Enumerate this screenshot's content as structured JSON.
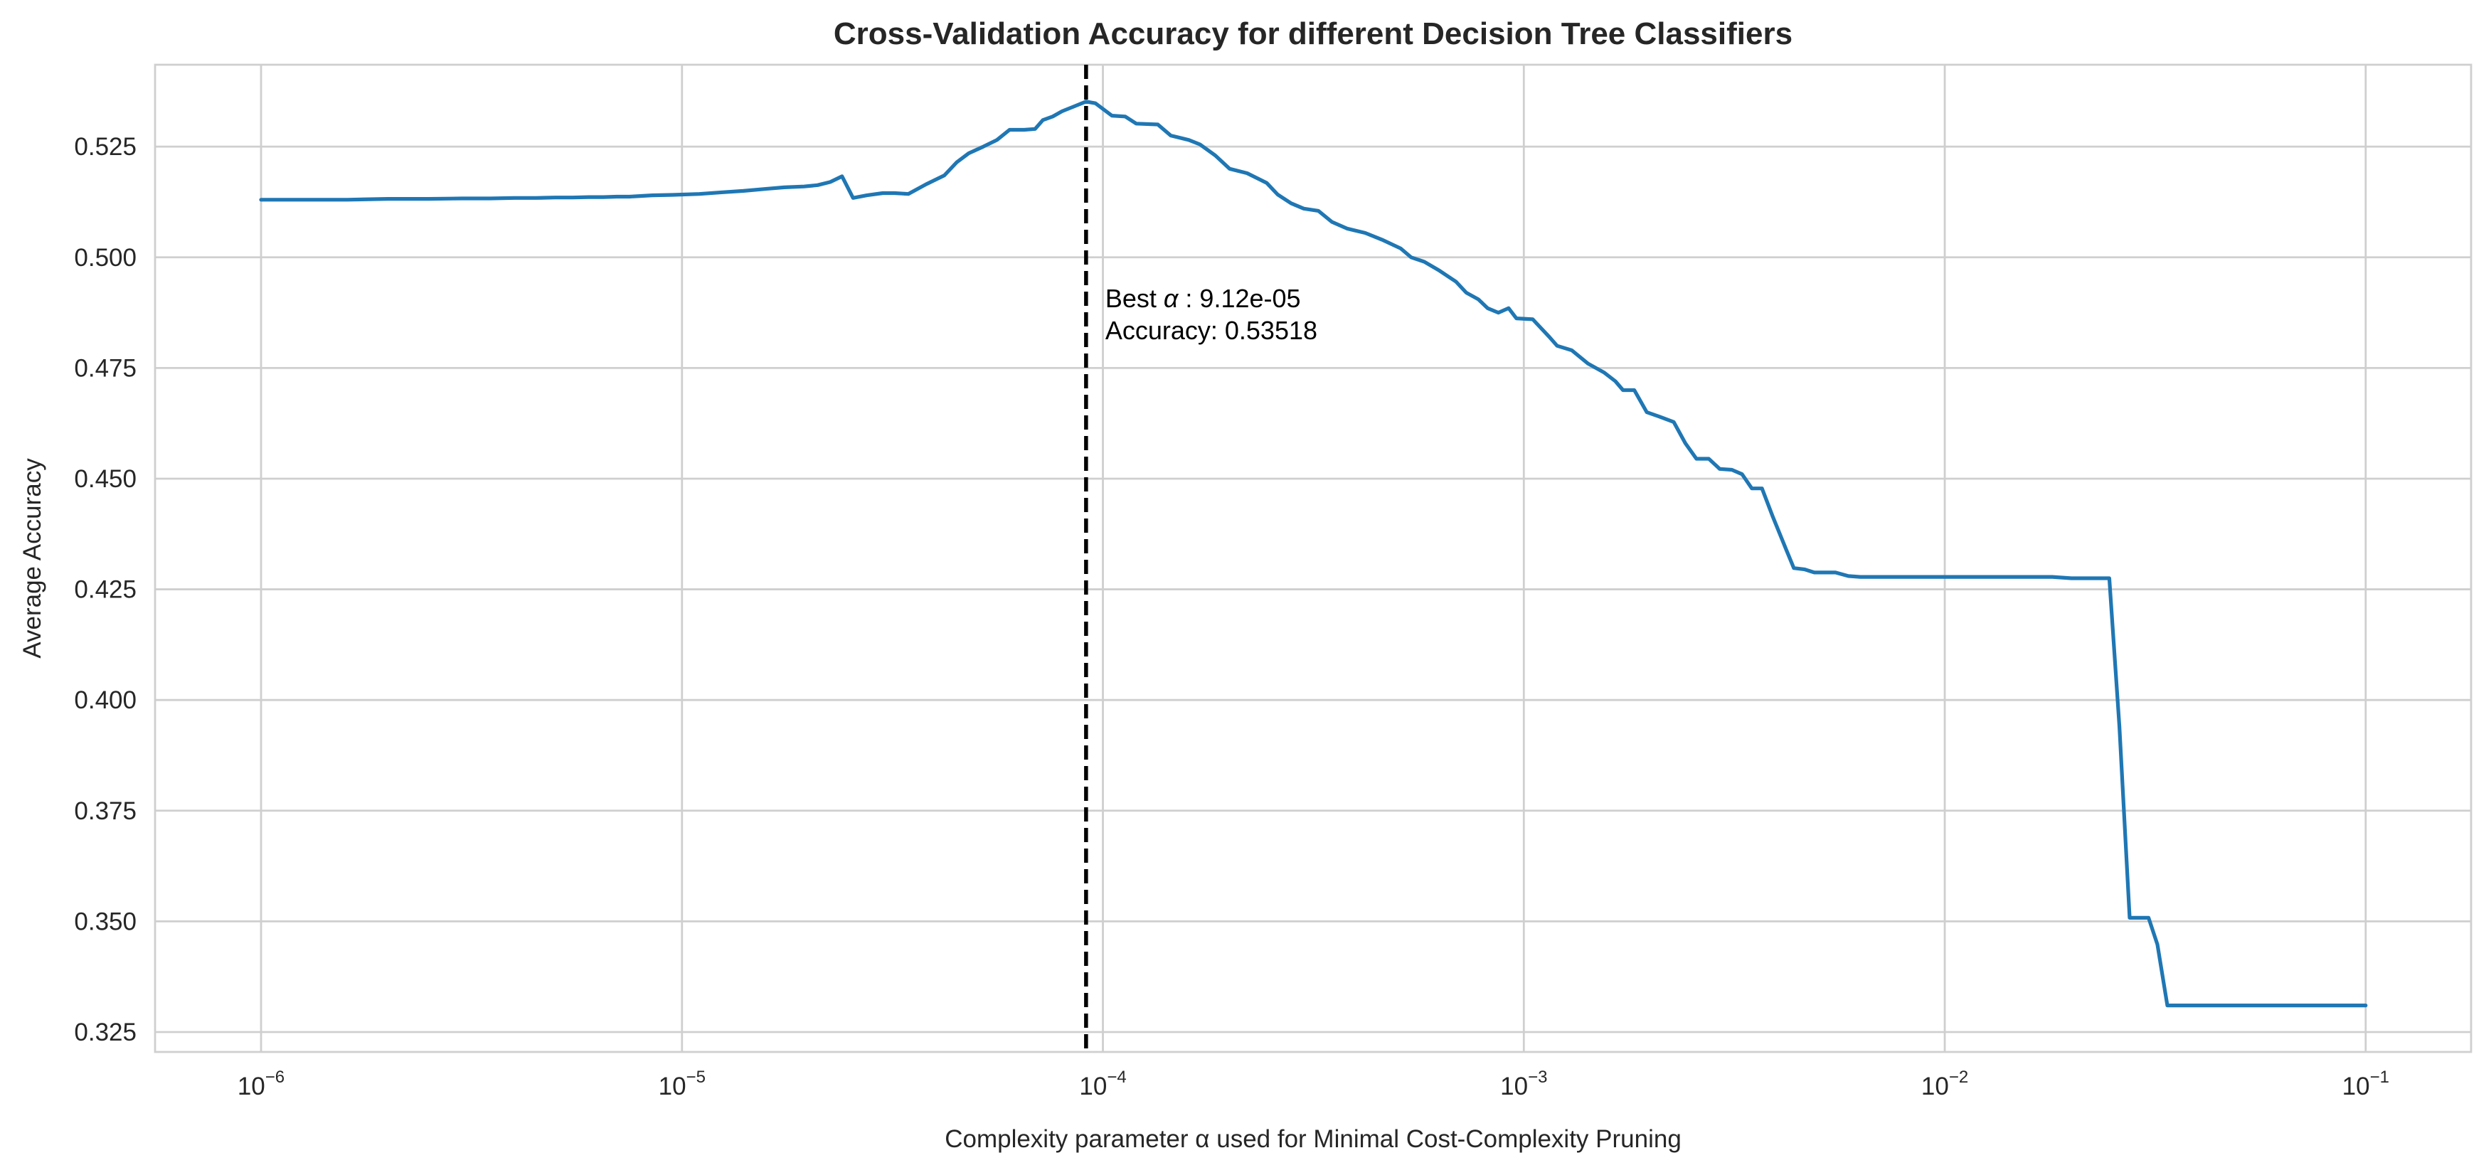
{
  "chart_data": {
    "type": "line",
    "title": "Cross-Validation Accuracy for different Decision Tree Classifiers",
    "xlabel": "Complexity parameter α used for Minimal Cost-Complexity Pruning",
    "ylabel": "Average Accuracy",
    "xscale": "log",
    "xlim": [
      5.6e-07,
      0.178
    ],
    "ylim": [
      0.3205,
      0.5435
    ],
    "grid": true,
    "legend": "none",
    "x_ticks": [
      {
        "value": 1e-06,
        "base": "10",
        "exp": "−6"
      },
      {
        "value": 1e-05,
        "base": "10",
        "exp": "−5"
      },
      {
        "value": 0.0001,
        "base": "10",
        "exp": "−4"
      },
      {
        "value": 0.001,
        "base": "10",
        "exp": "−3"
      },
      {
        "value": 0.01,
        "base": "10",
        "exp": "−2"
      },
      {
        "value": 0.1,
        "base": "10",
        "exp": "−1"
      }
    ],
    "y_ticks": [
      "0.325",
      "0.350",
      "0.375",
      "0.400",
      "0.425",
      "0.450",
      "0.475",
      "0.500",
      "0.525"
    ],
    "series": [
      {
        "color": "#1f77b4",
        "points": [
          [
            1e-06,
            0.513
          ],
          [
            1.3e-06,
            0.513
          ],
          [
            1.6e-06,
            0.513
          ],
          [
            2e-06,
            0.5132
          ],
          [
            2.5e-06,
            0.5132
          ],
          [
            3e-06,
            0.5133
          ],
          [
            3.5e-06,
            0.5133
          ],
          [
            4e-06,
            0.5134
          ],
          [
            4.5e-06,
            0.5134
          ],
          [
            5e-06,
            0.5135
          ],
          [
            5.5e-06,
            0.5135
          ],
          [
            6e-06,
            0.5136
          ],
          [
            6.5e-06,
            0.5136
          ],
          [
            7e-06,
            0.5137
          ],
          [
            7.5e-06,
            0.5137
          ],
          [
            8.5e-06,
            0.514
          ],
          [
            9.5e-06,
            0.5141
          ],
          [
            1.1e-05,
            0.5143
          ],
          [
            1.25e-05,
            0.5147
          ],
          [
            1.4e-05,
            0.515
          ],
          [
            1.6e-05,
            0.5155
          ],
          [
            1.75e-05,
            0.5158
          ],
          [
            1.95e-05,
            0.516
          ],
          [
            2.1e-05,
            0.5163
          ],
          [
            2.25e-05,
            0.517
          ],
          [
            2.4e-05,
            0.5183
          ],
          [
            2.55e-05,
            0.5134
          ],
          [
            2.75e-05,
            0.514
          ],
          [
            3e-05,
            0.5145
          ],
          [
            3.2e-05,
            0.5145
          ],
          [
            3.45e-05,
            0.5143
          ],
          [
            3.8e-05,
            0.5165
          ],
          [
            4.2e-05,
            0.5185
          ],
          [
            4.5e-05,
            0.5215
          ],
          [
            4.8e-05,
            0.5235
          ],
          [
            5.2e-05,
            0.525
          ],
          [
            5.6e-05,
            0.5265
          ],
          [
            6e-05,
            0.5288
          ],
          [
            6.5e-05,
            0.5288
          ],
          [
            6.9e-05,
            0.529
          ],
          [
            7.2e-05,
            0.531
          ],
          [
            7.6e-05,
            0.5318
          ],
          [
            8e-05,
            0.533
          ],
          [
            8.5e-05,
            0.534
          ],
          [
            9.12e-05,
            0.53518
          ],
          [
            9.6e-05,
            0.5348
          ],
          [
            0.000105,
            0.532
          ],
          [
            0.000113,
            0.5318
          ],
          [
            0.00012,
            0.5302
          ],
          [
            0.000135,
            0.53
          ],
          [
            0.000145,
            0.5275
          ],
          [
            0.00016,
            0.5265
          ],
          [
            0.00017,
            0.5255
          ],
          [
            0.000185,
            0.523
          ],
          [
            0.0002,
            0.52
          ],
          [
            0.00022,
            0.519
          ],
          [
            0.000245,
            0.5168
          ],
          [
            0.00026,
            0.5142
          ],
          [
            0.00028,
            0.5122
          ],
          [
            0.0003,
            0.511
          ],
          [
            0.000325,
            0.5105
          ],
          [
            0.00035,
            0.508
          ],
          [
            0.00038,
            0.5065
          ],
          [
            0.00042,
            0.5055
          ],
          [
            0.00046,
            0.504
          ],
          [
            0.00051,
            0.502
          ],
          [
            0.00054,
            0.5
          ],
          [
            0.00058,
            0.499
          ],
          [
            0.00063,
            0.497
          ],
          [
            0.00069,
            0.4945
          ],
          [
            0.00073,
            0.492
          ],
          [
            0.00078,
            0.4905
          ],
          [
            0.00082,
            0.4885
          ],
          [
            0.00087,
            0.4875
          ],
          [
            0.00092,
            0.4885
          ],
          [
            0.00096,
            0.4862
          ],
          [
            0.00105,
            0.486
          ],
          [
            0.00115,
            0.482
          ],
          [
            0.0012,
            0.48
          ],
          [
            0.0013,
            0.479
          ],
          [
            0.00142,
            0.476
          ],
          [
            0.00155,
            0.474
          ],
          [
            0.00165,
            0.472
          ],
          [
            0.00172,
            0.47
          ],
          [
            0.00183,
            0.47
          ],
          [
            0.00196,
            0.465
          ],
          [
            0.0021,
            0.464
          ],
          [
            0.00227,
            0.4628
          ],
          [
            0.00242,
            0.458
          ],
          [
            0.00257,
            0.4545
          ],
          [
            0.00275,
            0.4545
          ],
          [
            0.00292,
            0.4522
          ],
          [
            0.00312,
            0.452
          ],
          [
            0.0033,
            0.451
          ],
          [
            0.00348,
            0.4478
          ],
          [
            0.00368,
            0.4478
          ],
          [
            0.0039,
            0.4415
          ],
          [
            0.0042,
            0.434
          ],
          [
            0.00438,
            0.4298
          ],
          [
            0.00465,
            0.4295
          ],
          [
            0.0049,
            0.4288
          ],
          [
            0.0055,
            0.4288
          ],
          [
            0.0059,
            0.428
          ],
          [
            0.0063,
            0.4278
          ],
          [
            0.01,
            0.4278
          ],
          [
            0.015,
            0.4278
          ],
          [
            0.018,
            0.4278
          ],
          [
            0.02,
            0.4275
          ],
          [
            0.024,
            0.4275
          ],
          [
            0.0246,
            0.4275
          ],
          [
            0.026,
            0.394
          ],
          [
            0.0275,
            0.3508
          ],
          [
            0.0305,
            0.3508
          ],
          [
            0.032,
            0.3448
          ],
          [
            0.0338,
            0.331
          ],
          [
            0.045,
            0.331
          ],
          [
            0.065,
            0.331
          ],
          [
            0.1,
            0.331
          ]
        ]
      }
    ],
    "reference_line": {
      "x": 9.12e-05,
      "style": "dashed",
      "color": "#000000"
    },
    "annotation": {
      "line1_prefix": "Best ",
      "line1_symbol": "α",
      "line1_suffix": " : 9.12e-05",
      "line2": "Accuracy: 0.53518"
    }
  }
}
